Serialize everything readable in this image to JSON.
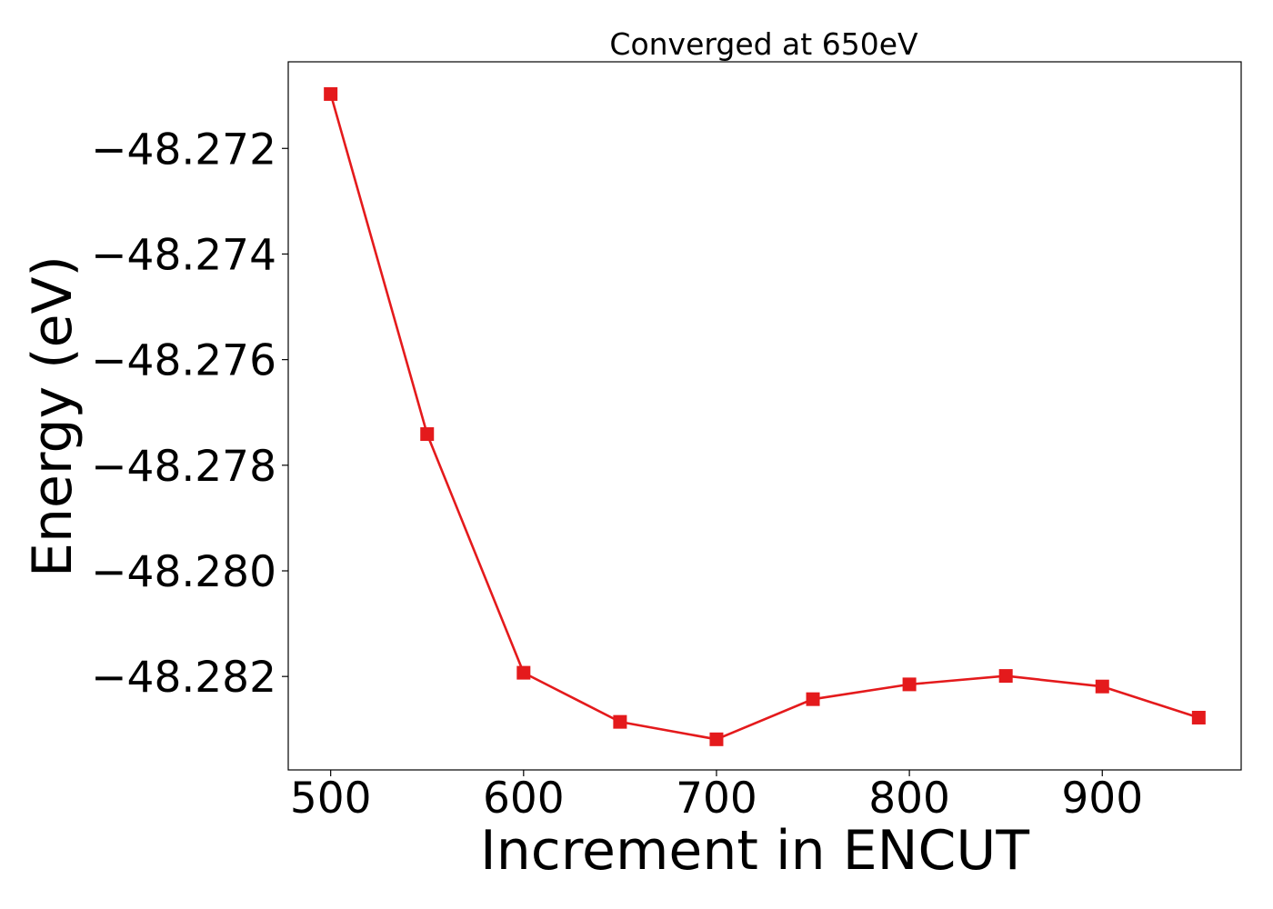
{
  "chart_data": {
    "type": "line",
    "title": "Converged at 650eV",
    "xlabel": "Increment in ENCUT",
    "ylabel": "Energy (eV)",
    "x": [
      500,
      550,
      600,
      650,
      700,
      750,
      800,
      850,
      900,
      950
    ],
    "series": [
      {
        "values": [
          -48.27097,
          -48.27741,
          -48.28193,
          -48.28286,
          -48.28319,
          -48.28243,
          -48.28215,
          -48.28199,
          -48.28219,
          -48.28278
        ],
        "color": "#e41a1c",
        "marker": "square"
      }
    ],
    "xlim": [
      478,
      972
    ],
    "ylim": [
      -48.28377,
      -48.27036
    ],
    "xticks": [
      500,
      600,
      700,
      800,
      900
    ],
    "yticks": [
      -48.272,
      -48.274,
      -48.276,
      -48.278,
      -48.28,
      -48.282
    ],
    "xtick_labels": [
      "500",
      "600",
      "700",
      "800",
      "900"
    ],
    "ytick_labels": [
      "−48.272",
      "−48.274",
      "−48.276",
      "−48.278",
      "−48.280",
      "−48.282"
    ],
    "grid": false,
    "legend": "none"
  }
}
